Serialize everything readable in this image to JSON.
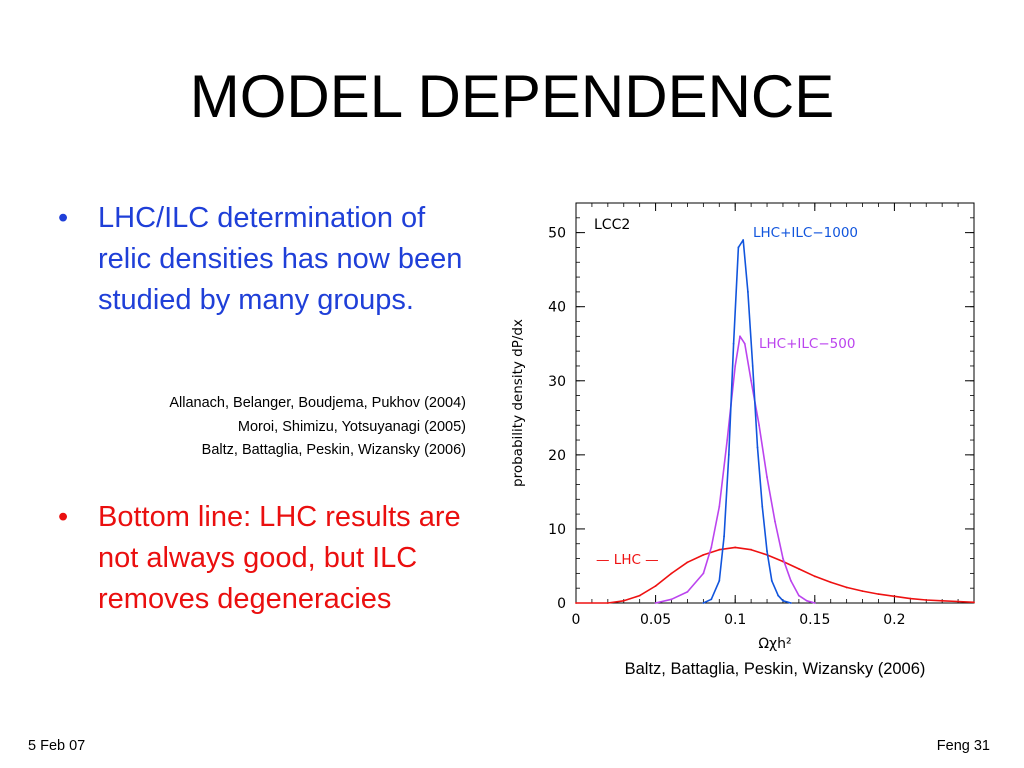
{
  "slide": {
    "title": "MODEL DEPENDENCE",
    "bullets": [
      {
        "mark": "•",
        "text": "LHC/ILC determination of relic densities has now been studied by many groups.",
        "color": "#1f3fd8"
      },
      {
        "mark": "•",
        "text": "Bottom line: LHC results are not always good, but ILC removes degeneracies",
        "color": "#ea0f0f"
      }
    ],
    "references": [
      "Allanach, Belanger, Boudjema, Pukhov (2004)",
      "Moroi, Shimizu, Yotsuyanagi (2005)",
      "Baltz, Battaglia, Peskin, Wizansky (2006)"
    ],
    "figure_caption": "Baltz, Battaglia, Peskin, Wizansky (2006)",
    "footer_left": "5 Feb 07",
    "footer_right": "Feng 31"
  },
  "chart_data": {
    "type": "line",
    "panel_label": "LCC2",
    "xlabel": "Ωχh²",
    "ylabel": "probability density dP/dx",
    "xlim": [
      0,
      0.25
    ],
    "ylim": [
      0,
      54
    ],
    "xticks": [
      0,
      0.05,
      0.1,
      0.15,
      0.2
    ],
    "xtick_labels": [
      "0",
      "0.05",
      "0.1",
      "0.15",
      "0.2"
    ],
    "yticks": [
      0,
      10,
      20,
      30,
      40,
      50
    ],
    "ytick_labels": [
      "0",
      "10",
      "20",
      "30",
      "40",
      "50"
    ],
    "grid": false,
    "series": [
      {
        "name": "LHC",
        "label": "— LHC —",
        "color": "#ee1111",
        "x": [
          0,
          0.02,
          0.03,
          0.04,
          0.05,
          0.06,
          0.07,
          0.08,
          0.09,
          0.1,
          0.11,
          0.12,
          0.13,
          0.14,
          0.15,
          0.16,
          0.17,
          0.18,
          0.19,
          0.2,
          0.21,
          0.22,
          0.23,
          0.24,
          0.25
        ],
        "y": [
          0,
          0,
          0.3,
          1,
          2.3,
          4,
          5.5,
          6.5,
          7.2,
          7.5,
          7.2,
          6.5,
          5.6,
          4.6,
          3.6,
          2.8,
          2.1,
          1.6,
          1.2,
          0.9,
          0.6,
          0.4,
          0.3,
          0.2,
          0.1
        ]
      },
      {
        "name": "LHC+ILC−500",
        "label": "LHC+ILC−500",
        "color": "#bb44ee",
        "x": [
          0.05,
          0.06,
          0.07,
          0.08,
          0.085,
          0.09,
          0.095,
          0.1,
          0.103,
          0.106,
          0.11,
          0.115,
          0.12,
          0.125,
          0.13,
          0.135,
          0.14,
          0.145,
          0.15
        ],
        "y": [
          0,
          0.5,
          1.5,
          4,
          7.5,
          13,
          22,
          32,
          36,
          35,
          30,
          24,
          17,
          11,
          6,
          3,
          1,
          0.3,
          0
        ]
      },
      {
        "name": "LHC+ILC−1000",
        "label": "LHC+ILC−1000",
        "color": "#1155dd",
        "x": [
          0.08,
          0.085,
          0.09,
          0.093,
          0.096,
          0.099,
          0.102,
          0.105,
          0.108,
          0.111,
          0.114,
          0.117,
          0.12,
          0.123,
          0.127,
          0.13,
          0.135
        ],
        "y": [
          0,
          0.5,
          3,
          9,
          20,
          35,
          48,
          49,
          42,
          32,
          21,
          13,
          7,
          3,
          1,
          0.3,
          0
        ]
      }
    ],
    "annotations": [
      {
        "text": "LHC+ILC−1000",
        "color": "#1155dd"
      },
      {
        "text": "LHC+ILC−500",
        "color": "#bb44ee"
      },
      {
        "text": "— LHC —",
        "color": "#ee1111"
      }
    ]
  }
}
